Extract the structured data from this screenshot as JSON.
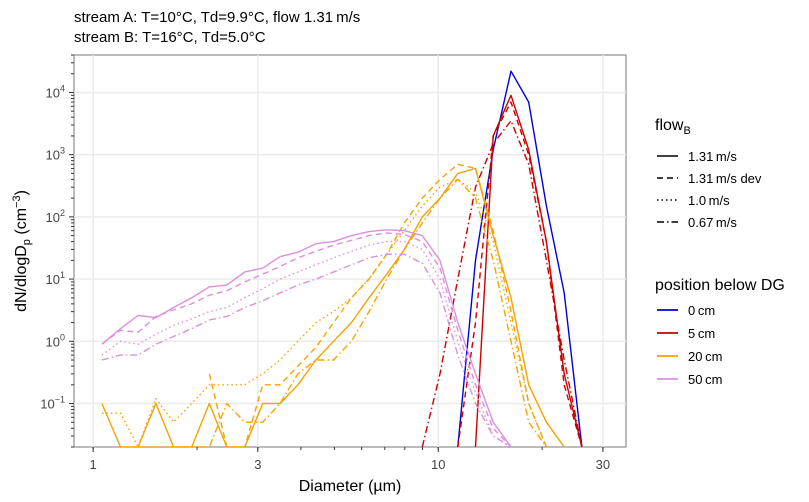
{
  "chart_data": {
    "type": "line",
    "title_line1": "stream A: T=10°C, Td=9.9°C, flow 1.31 m/s",
    "title_line2": "stream B: T=16°C, Td=5.0°C",
    "xlabel": "Diameter (µm)",
    "ylabel_main": "dN/dlogD",
    "ylabel_sub": "p",
    "ylabel_unit": "(cm",
    "ylabel_unit_exp": "−3",
    "ylabel_unit_close": ")",
    "x_scale": "log",
    "y_scale": "log",
    "xlim": [
      0.88,
      35
    ],
    "ylim": [
      0.02,
      40000
    ],
    "x_ticks": [
      {
        "value": 1,
        "label": "1"
      },
      {
        "value": 3,
        "label": "3"
      },
      {
        "value": 10,
        "label": "10"
      },
      {
        "value": 30,
        "label": "30"
      }
    ],
    "y_ticks": [
      {
        "value": 0.1,
        "base": "10",
        "exp": "−1"
      },
      {
        "value": 1,
        "base": "10",
        "exp": "0"
      },
      {
        "value": 10,
        "base": "10",
        "exp": "1"
      },
      {
        "value": 100,
        "base": "10",
        "exp": "2"
      },
      {
        "value": 1000,
        "base": "10",
        "exp": "3"
      },
      {
        "value": 10000,
        "base": "10",
        "exp": "4"
      }
    ],
    "grid": true,
    "legend_flow": {
      "title_main": "flow",
      "title_sub": "B",
      "items": [
        {
          "label": "1.31 m/s",
          "dash": "solid"
        },
        {
          "label": "1.31 m/s dev",
          "dash": "dashed"
        },
        {
          "label": "1.0 m/s",
          "dash": "dotted"
        },
        {
          "label": "0.67 m/s",
          "dash": "dotdash"
        }
      ]
    },
    "legend_position": {
      "title": "position below DG",
      "items": [
        {
          "label": "0 cm",
          "color": "#0000dd"
        },
        {
          "label": "5 cm",
          "color": "#cc0000"
        },
        {
          "label": "20 cm",
          "color": "#f5a300"
        },
        {
          "label": "50 cm",
          "color": "#dd8fdd"
        }
      ]
    },
    "legend_placement": "right",
    "x": [
      1.06,
      1.2,
      1.35,
      1.52,
      1.71,
      1.93,
      2.17,
      2.44,
      2.75,
      3.1,
      3.48,
      3.92,
      4.42,
      4.97,
      5.6,
      6.3,
      7.09,
      7.98,
      8.99,
      10.12,
      11.39,
      12.82,
      14.43,
      16.25,
      18.29,
      20.58,
      23.17,
      26.08,
      29.36
    ],
    "series": [
      {
        "position": "0 cm",
        "flow": "1.31 m/s",
        "color": "#0000dd",
        "dash": "solid",
        "values": [
          null,
          null,
          null,
          null,
          null,
          null,
          null,
          null,
          null,
          null,
          null,
          null,
          null,
          null,
          null,
          null,
          null,
          null,
          null,
          null,
          0.02,
          20,
          1200,
          22000,
          7000,
          150,
          6,
          0.02,
          null
        ]
      },
      {
        "position": "5 cm",
        "flow": "1.31 m/s",
        "color": "#cc0000",
        "dash": "solid",
        "values": [
          null,
          null,
          null,
          null,
          null,
          null,
          null,
          null,
          null,
          null,
          null,
          null,
          null,
          null,
          null,
          null,
          null,
          null,
          null,
          null,
          null,
          0.02,
          2000,
          9000,
          1200,
          40,
          0.3,
          0.02,
          null
        ]
      },
      {
        "position": "5 cm",
        "flow": "1.31 m/s dev",
        "color": "#cc0000",
        "dash": "dashed",
        "values": [
          null,
          null,
          null,
          null,
          null,
          null,
          null,
          null,
          null,
          null,
          null,
          null,
          null,
          null,
          null,
          null,
          null,
          null,
          null,
          null,
          0.02,
          2,
          2000,
          7000,
          1000,
          40,
          0.2,
          0.02,
          null
        ]
      },
      {
        "position": "5 cm",
        "flow": "0.67 m/s",
        "color": "#cc0000",
        "dash": "dotdash",
        "values": [
          null,
          null,
          null,
          null,
          null,
          null,
          null,
          null,
          null,
          null,
          null,
          null,
          null,
          null,
          null,
          null,
          null,
          null,
          0.02,
          0.3,
          10,
          300,
          1500,
          3500,
          700,
          20,
          0.5,
          0.02,
          null
        ]
      },
      {
        "position": "20 cm",
        "flow": "1.31 m/s",
        "color": "#f5a300",
        "dash": "solid",
        "values": [
          0.1,
          0.02,
          0.02,
          0.1,
          0.02,
          0.02,
          0.1,
          0.02,
          0.02,
          0.1,
          0.1,
          0.2,
          0.5,
          1,
          2,
          5,
          12,
          30,
          100,
          200,
          500,
          600,
          50,
          5,
          0.2,
          0.05,
          0.02,
          null,
          null
        ]
      },
      {
        "position": "20 cm",
        "flow": "1.31 m/s dev",
        "color": "#f5a300",
        "dash": "dashed",
        "values": [
          null,
          null,
          null,
          null,
          null,
          null,
          0.3,
          0.02,
          0.02,
          0.2,
          0.2,
          0.4,
          0.8,
          2,
          5,
          10,
          25,
          80,
          200,
          400,
          700,
          600,
          60,
          3,
          0.1,
          0.02,
          null,
          null,
          null
        ]
      },
      {
        "position": "20 cm",
        "flow": "1.0 m/s",
        "color": "#f5a300",
        "dash": "dotted",
        "values": [
          0.07,
          0.07,
          0.02,
          0.12,
          0.05,
          0.1,
          0.2,
          0.2,
          0.2,
          0.3,
          0.5,
          1,
          2,
          3,
          5,
          10,
          25,
          60,
          150,
          300,
          400,
          250,
          40,
          2,
          0.1,
          0.02,
          null,
          null,
          null
        ]
      },
      {
        "position": "20 cm",
        "flow": "0.67 m/s",
        "color": "#f5a300",
        "dash": "dotdash",
        "values": [
          null,
          null,
          0.02,
          0.02,
          0.02,
          0.02,
          0.02,
          0.1,
          0.05,
          0.05,
          0.1,
          0.3,
          0.5,
          0.5,
          1,
          3,
          10,
          30,
          80,
          200,
          400,
          200,
          20,
          1,
          0.05,
          0.02,
          null,
          null,
          null
        ]
      },
      {
        "position": "50 cm",
        "flow": "1.31 m/s",
        "color": "#dd8fdd",
        "dash": "solid",
        "values": [
          0.9,
          1.6,
          2.6,
          2.4,
          3.5,
          5,
          7.5,
          8,
          13,
          15,
          23,
          27,
          37,
          40,
          50,
          58,
          62,
          60,
          50,
          20,
          2,
          0.3,
          0.05,
          0.02,
          null,
          null,
          null,
          null,
          null
        ]
      },
      {
        "position": "50 cm",
        "flow": "1.31 m/s dev",
        "color": "#dd8fdd",
        "dash": "dashed",
        "values": [
          0.9,
          1.5,
          1.4,
          2.5,
          3.2,
          4,
          5.5,
          6.5,
          9,
          12,
          16,
          22,
          28,
          35,
          42,
          50,
          55,
          52,
          40,
          15,
          1.5,
          0.2,
          0.04,
          0.02,
          null,
          null,
          null,
          null,
          null
        ]
      },
      {
        "position": "50 cm",
        "flow": "1.0 m/s",
        "color": "#dd8fdd",
        "dash": "dotted",
        "values": [
          0.6,
          1.0,
          0.9,
          1.3,
          1.8,
          2.3,
          3,
          3.5,
          5,
          7,
          10,
          13,
          17,
          22,
          28,
          35,
          40,
          40,
          30,
          10,
          1,
          0.15,
          0.03,
          0.02,
          null,
          null,
          null,
          null,
          null
        ]
      },
      {
        "position": "50 cm",
        "flow": "0.67 m/s",
        "color": "#dd8fdd",
        "dash": "dotdash",
        "values": [
          0.5,
          0.6,
          0.6,
          0.9,
          1.2,
          1.6,
          2.2,
          2.5,
          3.5,
          4.5,
          6,
          8,
          10,
          13,
          17,
          22,
          25,
          25,
          18,
          6,
          0.6,
          0.1,
          0.03,
          0.02,
          null,
          null,
          null,
          null,
          null
        ]
      }
    ]
  }
}
